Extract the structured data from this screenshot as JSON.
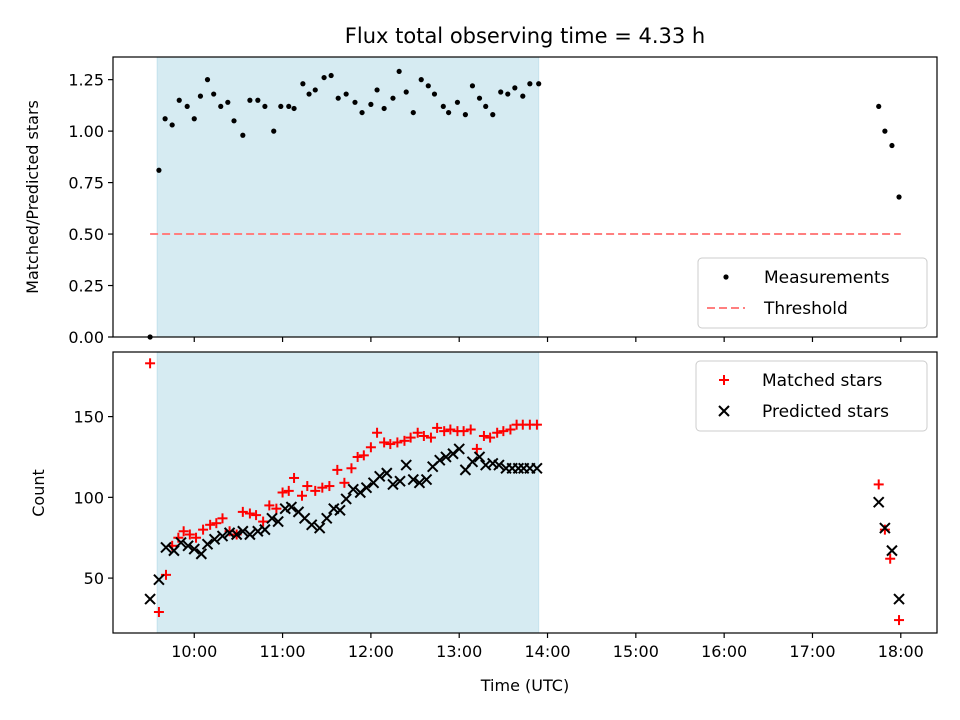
{
  "figure": {
    "title": "Flux total observing time = 4.33 h"
  },
  "chart_data": [
    {
      "type": "scatter",
      "xlabel": "",
      "ylabel": "Matched/Predicted stars",
      "ylim": [
        0,
        1.36
      ],
      "yticks": [
        0.0,
        0.25,
        0.5,
        0.75,
        1.0,
        1.25
      ],
      "ytick_labels": [
        "0.00",
        "0.25",
        "0.50",
        "0.75",
        "1.00",
        "1.25"
      ],
      "xlim": [
        9.08,
        18.41
      ],
      "xticks": [
        10,
        11,
        12,
        13,
        14,
        15,
        16,
        17,
        18
      ],
      "xtick_labels": [
        "",
        "",
        "",
        "",
        "",
        "",
        "",
        "",
        ""
      ],
      "shaded_region": {
        "x": [
          9.58,
          13.9
        ],
        "color": "#add8e6"
      },
      "threshold": {
        "name": "Threshold",
        "y": 0.5,
        "x": [
          9.5,
          18.0
        ],
        "color": "#ff7f7f"
      },
      "legend_position": "lower-right",
      "series": [
        {
          "name": "Measurements",
          "color": "#000000",
          "marker": "dot",
          "x": [
            9.5,
            9.6,
            9.67,
            9.75,
            9.83,
            9.92,
            10.0,
            10.07,
            10.15,
            10.22,
            10.3,
            10.38,
            10.45,
            10.55,
            10.63,
            10.72,
            10.8,
            10.9,
            10.98,
            11.07,
            11.13,
            11.23,
            11.3,
            11.37,
            11.47,
            11.55,
            11.63,
            11.72,
            11.82,
            11.9,
            12.0,
            12.07,
            12.15,
            12.25,
            12.32,
            12.4,
            12.48,
            12.57,
            12.65,
            12.72,
            12.82,
            12.88,
            12.98,
            13.07,
            13.15,
            13.23,
            13.3,
            13.38,
            13.47,
            13.55,
            13.63,
            13.72,
            13.8,
            13.9,
            17.75,
            17.82,
            17.9,
            17.98
          ],
          "y": [
            0.0,
            0.81,
            1.06,
            1.03,
            1.15,
            1.12,
            1.06,
            1.17,
            1.25,
            1.18,
            1.12,
            1.14,
            1.05,
            0.98,
            1.15,
            1.15,
            1.12,
            1.0,
            1.12,
            1.12,
            1.11,
            1.23,
            1.18,
            1.2,
            1.26,
            1.27,
            1.16,
            1.18,
            1.14,
            1.09,
            1.13,
            1.2,
            1.11,
            1.16,
            1.29,
            1.19,
            1.09,
            1.25,
            1.22,
            1.18,
            1.12,
            1.09,
            1.14,
            1.08,
            1.22,
            1.16,
            1.12,
            1.08,
            1.19,
            1.18,
            1.21,
            1.17,
            1.23,
            1.23,
            1.12,
            1.0,
            0.93,
            0.68
          ]
        }
      ]
    },
    {
      "type": "scatter",
      "xlabel": "Time (UTC)",
      "ylabel": "Count",
      "ylim": [
        16,
        190
      ],
      "yticks": [
        50,
        100,
        150
      ],
      "ytick_labels": [
        "50",
        "100",
        "150"
      ],
      "xlim": [
        9.08,
        18.41
      ],
      "xticks": [
        10,
        11,
        12,
        13,
        14,
        15,
        16,
        17,
        18
      ],
      "xtick_labels": [
        "10:00",
        "11:00",
        "12:00",
        "13:00",
        "14:00",
        "15:00",
        "16:00",
        "17:00",
        "18:00"
      ],
      "shaded_region": {
        "x": [
          9.58,
          13.9
        ],
        "color": "#add8e6"
      },
      "legend_position": "upper-right",
      "series": [
        {
          "name": "Matched stars",
          "color": "#ff0000",
          "marker": "plus",
          "x": [
            9.5,
            9.6,
            9.68,
            9.75,
            9.82,
            9.88,
            9.95,
            10.02,
            10.1,
            10.18,
            10.25,
            10.32,
            10.4,
            10.48,
            10.55,
            10.63,
            10.7,
            10.78,
            10.85,
            10.93,
            11.0,
            11.07,
            11.13,
            11.22,
            11.28,
            11.37,
            11.45,
            11.53,
            11.62,
            11.7,
            11.78,
            11.85,
            11.92,
            12.0,
            12.07,
            12.15,
            12.22,
            12.3,
            12.38,
            12.45,
            12.53,
            12.6,
            12.68,
            12.75,
            12.83,
            12.9,
            12.98,
            13.05,
            13.13,
            13.2,
            13.28,
            13.35,
            13.43,
            13.5,
            13.58,
            13.65,
            13.72,
            13.8,
            13.88,
            17.75,
            17.82,
            17.88,
            17.98
          ],
          "y": [
            183,
            29,
            52,
            70,
            75,
            79,
            77,
            75,
            80,
            83,
            84,
            87,
            79,
            77,
            91,
            90,
            89,
            85,
            95,
            93,
            103,
            104,
            112,
            101,
            107,
            104,
            106,
            107,
            117,
            109,
            118,
            125,
            126,
            131,
            140,
            134,
            133,
            134,
            135,
            137,
            140,
            138,
            137,
            143,
            141,
            142,
            141,
            141,
            142,
            130,
            138,
            137,
            140,
            141,
            142,
            145,
            145,
            145,
            145,
            108,
            80,
            62,
            24
          ]
        },
        {
          "name": "Predicted stars",
          "color": "#000000",
          "marker": "x",
          "x": [
            9.5,
            9.6,
            9.68,
            9.77,
            9.85,
            9.93,
            10.0,
            10.08,
            10.15,
            10.23,
            10.32,
            10.4,
            10.48,
            10.55,
            10.63,
            10.72,
            10.8,
            10.88,
            10.95,
            11.03,
            11.1,
            11.18,
            11.25,
            11.33,
            11.42,
            11.5,
            11.58,
            11.65,
            11.72,
            11.8,
            11.88,
            11.95,
            12.03,
            12.1,
            12.18,
            12.25,
            12.33,
            12.4,
            12.48,
            12.55,
            12.63,
            12.7,
            12.78,
            12.85,
            12.93,
            13.0,
            13.07,
            13.15,
            13.23,
            13.3,
            13.38,
            13.45,
            13.53,
            13.6,
            13.67,
            13.73,
            13.8,
            13.88,
            17.75,
            17.82,
            17.9,
            17.98
          ],
          "y": [
            37,
            49,
            69,
            67,
            72,
            70,
            68,
            65,
            71,
            74,
            76,
            78,
            77,
            79,
            77,
            79,
            80,
            87,
            85,
            93,
            94,
            91,
            87,
            83,
            81,
            87,
            93,
            92,
            99,
            105,
            103,
            106,
            109,
            113,
            115,
            108,
            110,
            120,
            111,
            109,
            111,
            119,
            123,
            125,
            127,
            130,
            117,
            122,
            125,
            120,
            121,
            120,
            118,
            118,
            118,
            118,
            118,
            118,
            97,
            81,
            67,
            37
          ]
        }
      ]
    }
  ]
}
